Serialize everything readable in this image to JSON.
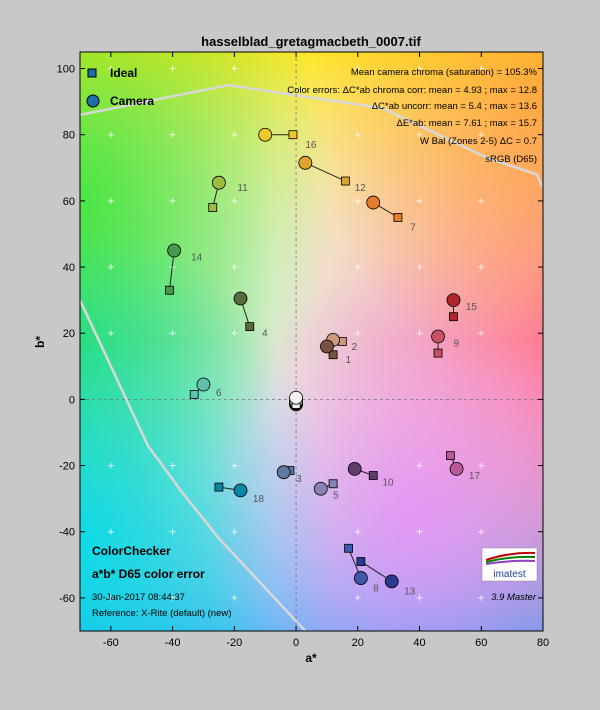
{
  "chart_data": {
    "type": "scatter",
    "title": "hasselblad_gretagmacbeth_0007.tif",
    "xlabel": "a*",
    "ylabel": "b*",
    "xlim": [
      -70,
      80
    ],
    "ylim": [
      -70,
      105
    ],
    "xticks": [
      -60,
      -40,
      -20,
      0,
      20,
      40,
      60,
      80
    ],
    "yticks": [
      -60,
      -40,
      -20,
      0,
      20,
      40,
      60,
      80,
      100
    ],
    "grid": "crosses",
    "legend": {
      "position": "top-left",
      "entries": [
        {
          "label": "Ideal",
          "marker": "square",
          "color": "#1d6fa8"
        },
        {
          "label": "Camera",
          "marker": "circle",
          "color": "#1d6fa8"
        }
      ]
    },
    "stats": [
      "Mean camera chroma (saturation) = 105.3%",
      "Color errors: ΔC*ab chroma corr:  mean = 4.93 ;  max = 12.8",
      "ΔC*ab uncorr:  mean = 5.4 ;  max = 13.6",
      "ΔE*ab:  mean = 7.61 ;  max = 15.7",
      "W Bal (Zones 2-5) ΔC = 0.7",
      "sRGB (D65)"
    ],
    "bottom_left": {
      "title": "ColorChecker",
      "subtitle": "a*b* D65 color error",
      "date": "30-Jan-2017 08:44:37",
      "reference": "Reference: X-Rite (default) (new)"
    },
    "logo_text": "imatest",
    "version": "3.9  Master",
    "gamut_upper": [
      [
        -70,
        86
      ],
      [
        -22,
        95
      ],
      [
        28,
        88
      ],
      [
        62,
        73
      ],
      [
        78,
        68
      ],
      [
        80,
        64
      ]
    ],
    "gamut_lower": [
      [
        -70,
        30
      ],
      [
        -60,
        10
      ],
      [
        -48,
        -14
      ],
      [
        -37,
        -28
      ],
      [
        -25,
        -42
      ],
      [
        -15,
        -52
      ],
      [
        -5,
        -62
      ],
      [
        3,
        -70
      ]
    ],
    "patches": [
      {
        "id": "1",
        "color": "#7a5240",
        "ideal": [
          12,
          13.5
        ],
        "camera": [
          10,
          16
        ],
        "label": [
          16,
          11
        ]
      },
      {
        "id": "2",
        "color": "#c9987e",
        "ideal": [
          15,
          17.5
        ],
        "camera": [
          12,
          18
        ],
        "label": [
          18,
          15
        ]
      },
      {
        "id": "3",
        "color": "#5e7aa2",
        "ideal": [
          -2,
          -21.5
        ],
        "camera": [
          -4,
          -22
        ],
        "label": [
          0,
          -25
        ]
      },
      {
        "id": "4",
        "color": "#5a6b3a",
        "ideal": [
          -15,
          22
        ],
        "camera": [
          -18,
          30.5
        ],
        "label": [
          -11,
          19
        ]
      },
      {
        "id": "5",
        "color": "#8782b4",
        "ideal": [
          12,
          -25.5
        ],
        "camera": [
          8,
          -27
        ],
        "label": [
          12,
          -30
        ]
      },
      {
        "id": "6",
        "color": "#5fc0ae",
        "ideal": [
          -33,
          1.5
        ],
        "camera": [
          -30,
          4.5
        ],
        "label": [
          -26,
          1
        ]
      },
      {
        "id": "7",
        "color": "#e57e2a",
        "ideal": [
          33,
          55
        ],
        "camera": [
          25,
          59.5
        ],
        "label": [
          37,
          51
        ]
      },
      {
        "id": "8",
        "color": "#3f58a8",
        "ideal": [
          17,
          -45
        ],
        "camera": [
          21,
          -54
        ],
        "label": [
          25,
          -58
        ]
      },
      {
        "id": "9",
        "color": "#c75063",
        "ideal": [
          46,
          14
        ],
        "camera": [
          46,
          19
        ],
        "label": [
          51,
          16
        ]
      },
      {
        "id": "10",
        "color": "#5e3c6c",
        "ideal": [
          25,
          -23
        ],
        "camera": [
          19,
          -21
        ],
        "label": [
          28,
          -26
        ]
      },
      {
        "id": "11",
        "color": "#9dbc3e",
        "ideal": [
          -27,
          58
        ],
        "camera": [
          -25,
          65.5
        ],
        "label": [
          -19,
          63
        ]
      },
      {
        "id": "12",
        "color": "#e0a32e",
        "ideal": [
          16,
          66
        ],
        "camera": [
          3,
          71.5
        ],
        "label": [
          19,
          63
        ]
      },
      {
        "id": "13",
        "color": "#2b3a90",
        "ideal": [
          21,
          -49
        ],
        "camera": [
          31,
          -55
        ],
        "label": [
          35,
          -59
        ]
      },
      {
        "id": "14",
        "color": "#469a4b",
        "ideal": [
          -41,
          33
        ],
        "camera": [
          -39.5,
          45
        ],
        "label": [
          -34,
          42
        ]
      },
      {
        "id": "15",
        "color": "#b3262e",
        "ideal": [
          51,
          25
        ],
        "camera": [
          51,
          30
        ],
        "label": [
          55,
          27
        ]
      },
      {
        "id": "16",
        "color": "#eec72a",
        "ideal": [
          -1,
          80
        ],
        "camera": [
          -10,
          80
        ],
        "label": [
          3,
          76
        ]
      },
      {
        "id": "17",
        "color": "#bb5797",
        "ideal": [
          50,
          -17
        ],
        "camera": [
          52,
          -21
        ],
        "label": [
          56,
          -24
        ]
      },
      {
        "id": "18",
        "color": "#0a86a5",
        "ideal": [
          -25,
          -26.5
        ],
        "camera": [
          -18,
          -27.5
        ],
        "label": [
          -14,
          -31
        ]
      },
      {
        "id": "",
        "color": "#f2f2f2",
        "ideal": [
          0,
          -1.5
        ],
        "camera": [
          0,
          0.5
        ],
        "label": null
      },
      {
        "id": "",
        "color": "#c8c8c8",
        "ideal": [
          0,
          -1
        ],
        "camera": [
          0,
          -0.5
        ],
        "label": null
      },
      {
        "id": "",
        "color": "#a0a0a0",
        "ideal": [
          0,
          -0.5
        ],
        "camera": [
          0,
          -1
        ],
        "label": null
      },
      {
        "id": "",
        "color": "#7a7a7a",
        "ideal": [
          0,
          -1
        ],
        "camera": [
          0,
          -1.2
        ],
        "label": null
      },
      {
        "id": "",
        "color": "#555555",
        "ideal": [
          0,
          -1.5
        ],
        "camera": [
          0,
          -1.5
        ],
        "label": null
      },
      {
        "id": "",
        "color": "#343434",
        "ideal": [
          0,
          -1
        ],
        "camera": [
          0,
          -1
        ],
        "label": null
      }
    ]
  }
}
